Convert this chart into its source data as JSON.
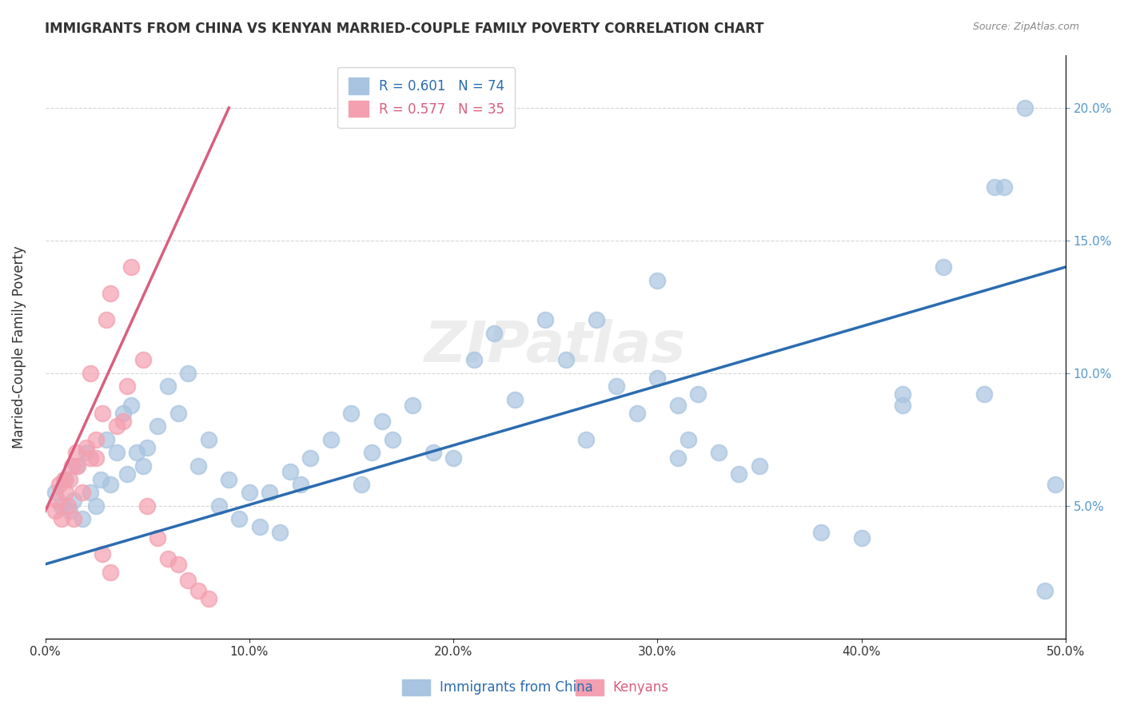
{
  "title": "IMMIGRANTS FROM CHINA VS KENYAN MARRIED-COUPLE FAMILY POVERTY CORRELATION CHART",
  "source": "Source: ZipAtlas.com",
  "ylabel": "Married-Couple Family Poverty",
  "legend_blue": "Immigrants from China",
  "legend_pink": "Kenyans",
  "r_blue": "R = 0.601",
  "n_blue": "N = 74",
  "r_pink": "R = 0.577",
  "n_pink": "N = 35",
  "blue_color": "#a8c4e0",
  "blue_line_color": "#2b6cb0",
  "pink_color": "#f4a0b0",
  "pink_line_color": "#d95f7f",
  "watermark": "ZIPatlas",
  "xlim": [
    0.0,
    0.5
  ],
  "ylim": [
    0.0,
    0.22
  ],
  "yticks": [
    0.05,
    0.1,
    0.15,
    0.2
  ],
  "xticks": [
    0.0,
    0.1,
    0.2,
    0.3,
    0.4,
    0.5
  ],
  "blue_points_x": [
    0.005,
    0.008,
    0.01,
    0.012,
    0.014,
    0.015,
    0.018,
    0.02,
    0.022,
    0.025,
    0.027,
    0.03,
    0.032,
    0.035,
    0.038,
    0.04,
    0.042,
    0.045,
    0.048,
    0.05,
    0.055,
    0.06,
    0.065,
    0.07,
    0.075,
    0.08,
    0.085,
    0.09,
    0.095,
    0.1,
    0.105,
    0.11,
    0.115,
    0.12,
    0.125,
    0.13,
    0.14,
    0.15,
    0.155,
    0.16,
    0.165,
    0.17,
    0.18,
    0.19,
    0.2,
    0.21,
    0.22,
    0.23,
    0.245,
    0.255,
    0.265,
    0.27,
    0.28,
    0.29,
    0.3,
    0.31,
    0.32,
    0.33,
    0.34,
    0.35,
    0.38,
    0.4,
    0.42,
    0.44,
    0.46,
    0.465,
    0.47,
    0.48,
    0.49,
    0.495,
    0.3,
    0.315,
    0.31,
    0.42
  ],
  "blue_points_y": [
    0.055,
    0.05,
    0.06,
    0.048,
    0.052,
    0.065,
    0.045,
    0.07,
    0.055,
    0.05,
    0.06,
    0.075,
    0.058,
    0.07,
    0.085,
    0.062,
    0.088,
    0.07,
    0.065,
    0.072,
    0.08,
    0.095,
    0.085,
    0.1,
    0.065,
    0.075,
    0.05,
    0.06,
    0.045,
    0.055,
    0.042,
    0.055,
    0.04,
    0.063,
    0.058,
    0.068,
    0.075,
    0.085,
    0.058,
    0.07,
    0.082,
    0.075,
    0.088,
    0.07,
    0.068,
    0.105,
    0.115,
    0.09,
    0.12,
    0.105,
    0.075,
    0.12,
    0.095,
    0.085,
    0.098,
    0.088,
    0.092,
    0.07,
    0.062,
    0.065,
    0.04,
    0.038,
    0.088,
    0.14,
    0.092,
    0.17,
    0.17,
    0.2,
    0.018,
    0.058,
    0.135,
    0.075,
    0.068,
    0.092
  ],
  "pink_points_x": [
    0.005,
    0.006,
    0.007,
    0.008,
    0.009,
    0.01,
    0.011,
    0.012,
    0.013,
    0.014,
    0.015,
    0.016,
    0.018,
    0.02,
    0.022,
    0.025,
    0.028,
    0.03,
    0.032,
    0.035,
    0.038,
    0.04,
    0.042,
    0.048,
    0.05,
    0.055,
    0.06,
    0.065,
    0.07,
    0.075,
    0.08,
    0.022,
    0.025,
    0.028,
    0.032
  ],
  "pink_points_y": [
    0.048,
    0.052,
    0.058,
    0.045,
    0.06,
    0.055,
    0.05,
    0.06,
    0.065,
    0.045,
    0.07,
    0.065,
    0.055,
    0.072,
    0.068,
    0.075,
    0.085,
    0.12,
    0.13,
    0.08,
    0.082,
    0.095,
    0.14,
    0.105,
    0.05,
    0.038,
    0.03,
    0.028,
    0.022,
    0.018,
    0.015,
    0.1,
    0.068,
    0.032,
    0.025
  ],
  "blue_line_x": [
    0.0,
    0.5
  ],
  "blue_line_y": [
    0.028,
    0.14
  ],
  "pink_line_x": [
    0.0,
    0.09
  ],
  "pink_line_y": [
    0.048,
    0.2
  ]
}
